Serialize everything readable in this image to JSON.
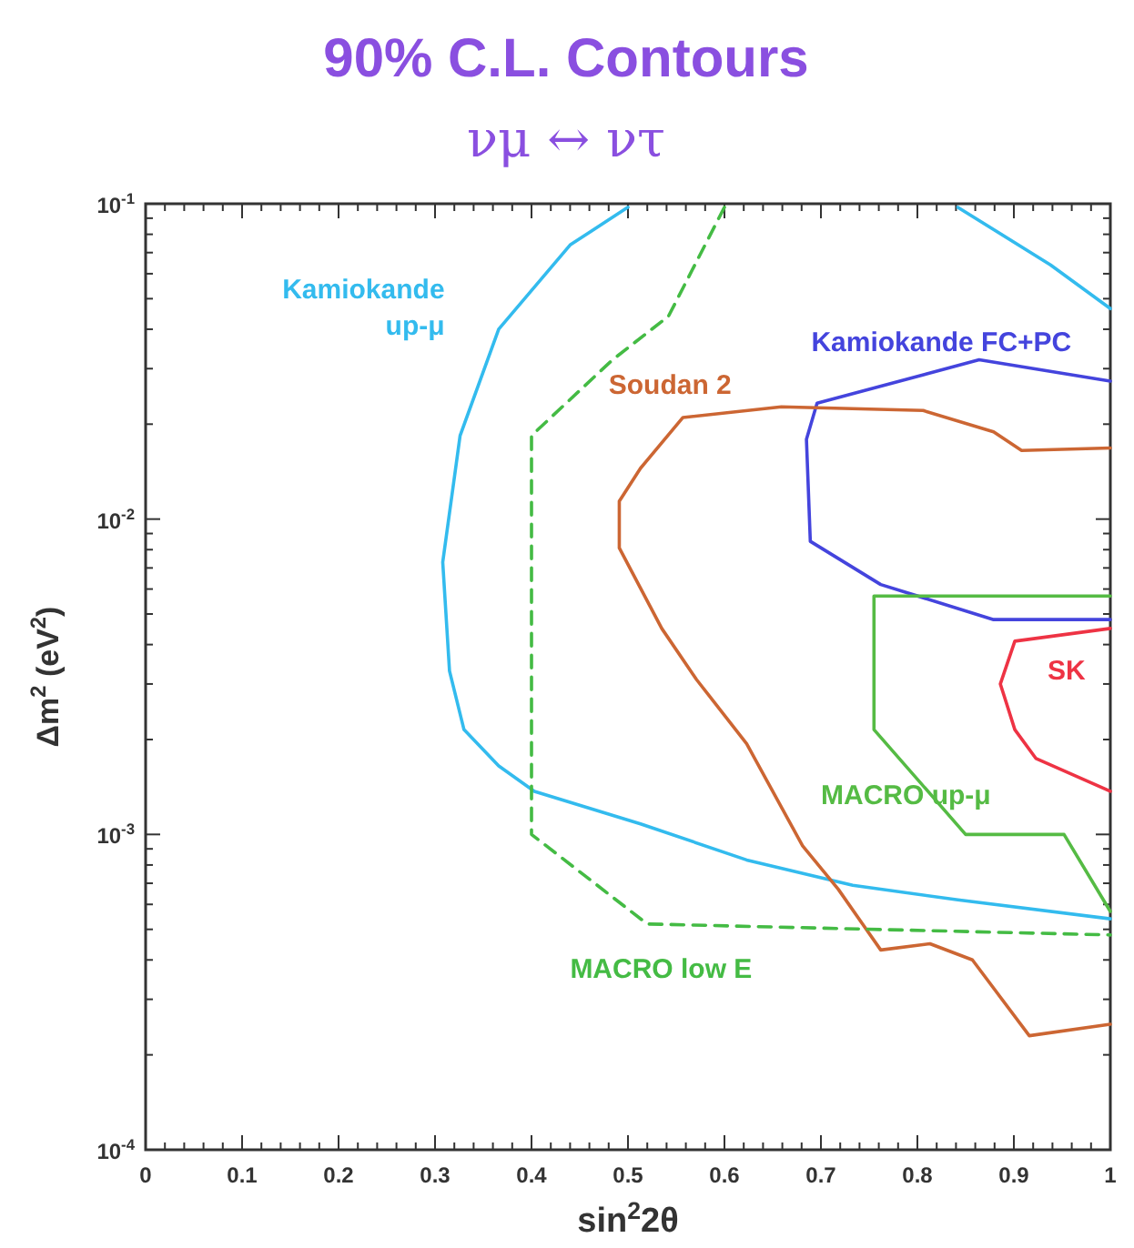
{
  "chart_data": {
    "type": "line",
    "title": "90% C.L. Contours",
    "subtitle": "νμ ↔ ντ",
    "xlabel": "sin$^{2}$2θ",
    "ylabel": "Δm$^{2}$ (eV$^{2}$)",
    "log": "y",
    "grid": false,
    "legend": false,
    "marker": "none",
    "xlim": [
      0,
      1
    ],
    "xticks": [
      0,
      {
        "value": 0.02,
        "label": null
      },
      {
        "value": 0.04,
        "label": null
      },
      {
        "value": 0.06,
        "label": null
      },
      {
        "value": 0.08,
        "label": null
      },
      0.1,
      {
        "value": 0.12,
        "label": null
      },
      {
        "value": 0.14,
        "label": null
      },
      {
        "value": 0.16,
        "label": null
      },
      {
        "value": 0.18,
        "label": null
      },
      0.2,
      {
        "value": 0.22,
        "label": null
      },
      {
        "value": 0.24,
        "label": null
      },
      {
        "value": 0.26,
        "label": null
      },
      {
        "value": 0.28,
        "label": null
      },
      0.3,
      {
        "value": 0.32,
        "label": null
      },
      {
        "value": 0.34,
        "label": null
      },
      {
        "value": 0.36,
        "label": null
      },
      {
        "value": 0.38,
        "label": null
      },
      0.4,
      {
        "value": 0.42,
        "label": null
      },
      {
        "value": 0.44,
        "label": null
      },
      {
        "value": 0.46,
        "label": null
      },
      {
        "value": 0.48,
        "label": null
      },
      0.5,
      {
        "value": 0.52,
        "label": null
      },
      {
        "value": 0.54,
        "label": null
      },
      {
        "value": 0.56,
        "label": null
      },
      {
        "value": 0.58,
        "label": null
      },
      0.6,
      {
        "value": 0.62,
        "label": null
      },
      {
        "value": 0.64,
        "label": null
      },
      {
        "value": 0.66,
        "label": null
      },
      {
        "value": 0.68,
        "label": null
      },
      0.7,
      {
        "value": 0.72,
        "label": null
      },
      {
        "value": 0.74,
        "label": null
      },
      {
        "value": 0.76,
        "label": null
      },
      {
        "value": 0.78,
        "label": null
      },
      0.8,
      {
        "value": 0.82,
        "label": null
      },
      {
        "value": 0.84,
        "label": null
      },
      {
        "value": 0.86,
        "label": null
      },
      {
        "value": 0.88,
        "label": null
      },
      0.9,
      {
        "value": 0.92,
        "label": null
      },
      {
        "value": 0.94,
        "label": null
      },
      {
        "value": 0.96,
        "label": null
      },
      {
        "value": 0.98,
        "label": null
      },
      1
    ],
    "ylim": [
      0.0001,
      0.1
    ],
    "yticks": [
      {
        "value": 0.0001,
        "label": "10$^{-4}$"
      },
      {
        "value": 0.0002,
        "label": null
      },
      {
        "value": 0.0003,
        "label": null
      },
      {
        "value": 0.0004,
        "label": null
      },
      {
        "value": 0.0005,
        "label": null
      },
      {
        "value": 0.0006,
        "label": null
      },
      {
        "value": 0.0007,
        "label": null
      },
      {
        "value": 0.0008,
        "label": null
      },
      {
        "value": 0.0009,
        "label": null
      },
      {
        "value": 0.001,
        "label": "10$^{-3}$"
      },
      {
        "value": 0.002,
        "label": null
      },
      {
        "value": 0.003,
        "label": null
      },
      {
        "value": 0.004,
        "label": null
      },
      {
        "value": 0.005,
        "label": null
      },
      {
        "value": 0.006,
        "label": null
      },
      {
        "value": 0.007,
        "label": null
      },
      {
        "value": 0.008,
        "label": null
      },
      {
        "value": 0.009,
        "label": null
      },
      {
        "value": 0.01,
        "label": "10$^{-2}$"
      },
      {
        "value": 0.02,
        "label": null
      },
      {
        "value": 0.03,
        "label": null
      },
      {
        "value": 0.04,
        "label": null
      },
      {
        "value": 0.05,
        "label": null
      },
      {
        "value": 0.06,
        "label": null
      },
      {
        "value": 0.07,
        "label": null
      },
      {
        "value": 0.08,
        "label": null
      },
      {
        "value": 0.09,
        "label": null
      },
      {
        "value": 0.1,
        "label": "10$^{-1}$"
      }
    ],
    "series": [
      {
        "name": "Kamiokande up-μ",
        "color": "#33bbee",
        "line_style": "solid",
        "x": [
          0.5,
          0.44,
          0.366,
          0.326,
          0.308,
          0.315,
          0.33,
          0.366,
          0.403,
          0.513,
          0.623,
          0.733,
          0.842,
          1.0,
          null,
          0.842,
          0.938,
          1.0
        ],
        "values": [
          0.0975,
          0.074,
          0.04,
          0.0184,
          0.0073,
          0.0033,
          0.00215,
          0.00165,
          0.00137,
          0.00108,
          0.00083,
          0.00069,
          0.00062,
          0.00054,
          null,
          0.0974,
          0.064,
          0.0465
        ]
      },
      {
        "name": "Kamiokande FC+PC",
        "color": "#4444dd",
        "line_style": "solid",
        "x": [
          1.0,
          0.864,
          0.696,
          0.685,
          0.689,
          0.762,
          0.879,
          1.0
        ],
        "values": [
          0.0274,
          0.032,
          0.0233,
          0.0179,
          0.0085,
          0.0062,
          0.0048,
          0.0048
        ]
      },
      {
        "name": "Soudan 2",
        "color": "#cc6633",
        "line_style": "solid",
        "x": [
          1.0,
          0.908,
          0.879,
          0.806,
          0.659,
          0.557,
          0.513,
          0.491,
          0.491,
          0.535,
          0.571,
          0.623,
          0.681,
          0.718,
          0.762,
          0.813,
          0.857,
          0.916,
          1.0
        ],
        "values": [
          0.0168,
          0.0165,
          0.0189,
          0.0221,
          0.0227,
          0.021,
          0.0145,
          0.0114,
          0.0081,
          0.0045,
          0.0031,
          0.00194,
          0.00092,
          0.00067,
          0.00043,
          0.00045,
          0.0004,
          0.00023,
          0.00025
        ]
      },
      {
        "name": "SK",
        "color": "#ee3344",
        "line_style": "solid",
        "x": [
          1.0,
          0.901,
          0.886,
          0.901,
          0.923,
          1.0
        ],
        "values": [
          0.0045,
          0.0041,
          0.003,
          0.00215,
          0.00174,
          0.00137
        ]
      },
      {
        "name": "MACRO up-μ",
        "color": "#55bb44",
        "line_style": "solid",
        "x": [
          1.0,
          0.755,
          0.755,
          0.85,
          0.952,
          1.0
        ],
        "values": [
          0.0057,
          0.0057,
          0.00215,
          0.001,
          0.001,
          0.00057
        ]
      },
      {
        "name": "MACRO low E",
        "color": "#44bb44",
        "line_style": "dashed",
        "x": [
          0.6,
          0.542,
          0.484,
          0.4,
          0.4,
          0.52,
          1.0
        ],
        "values": [
          0.0975,
          0.044,
          0.032,
          0.0184,
          0.001,
          0.00052,
          0.00048
        ]
      }
    ]
  }
}
